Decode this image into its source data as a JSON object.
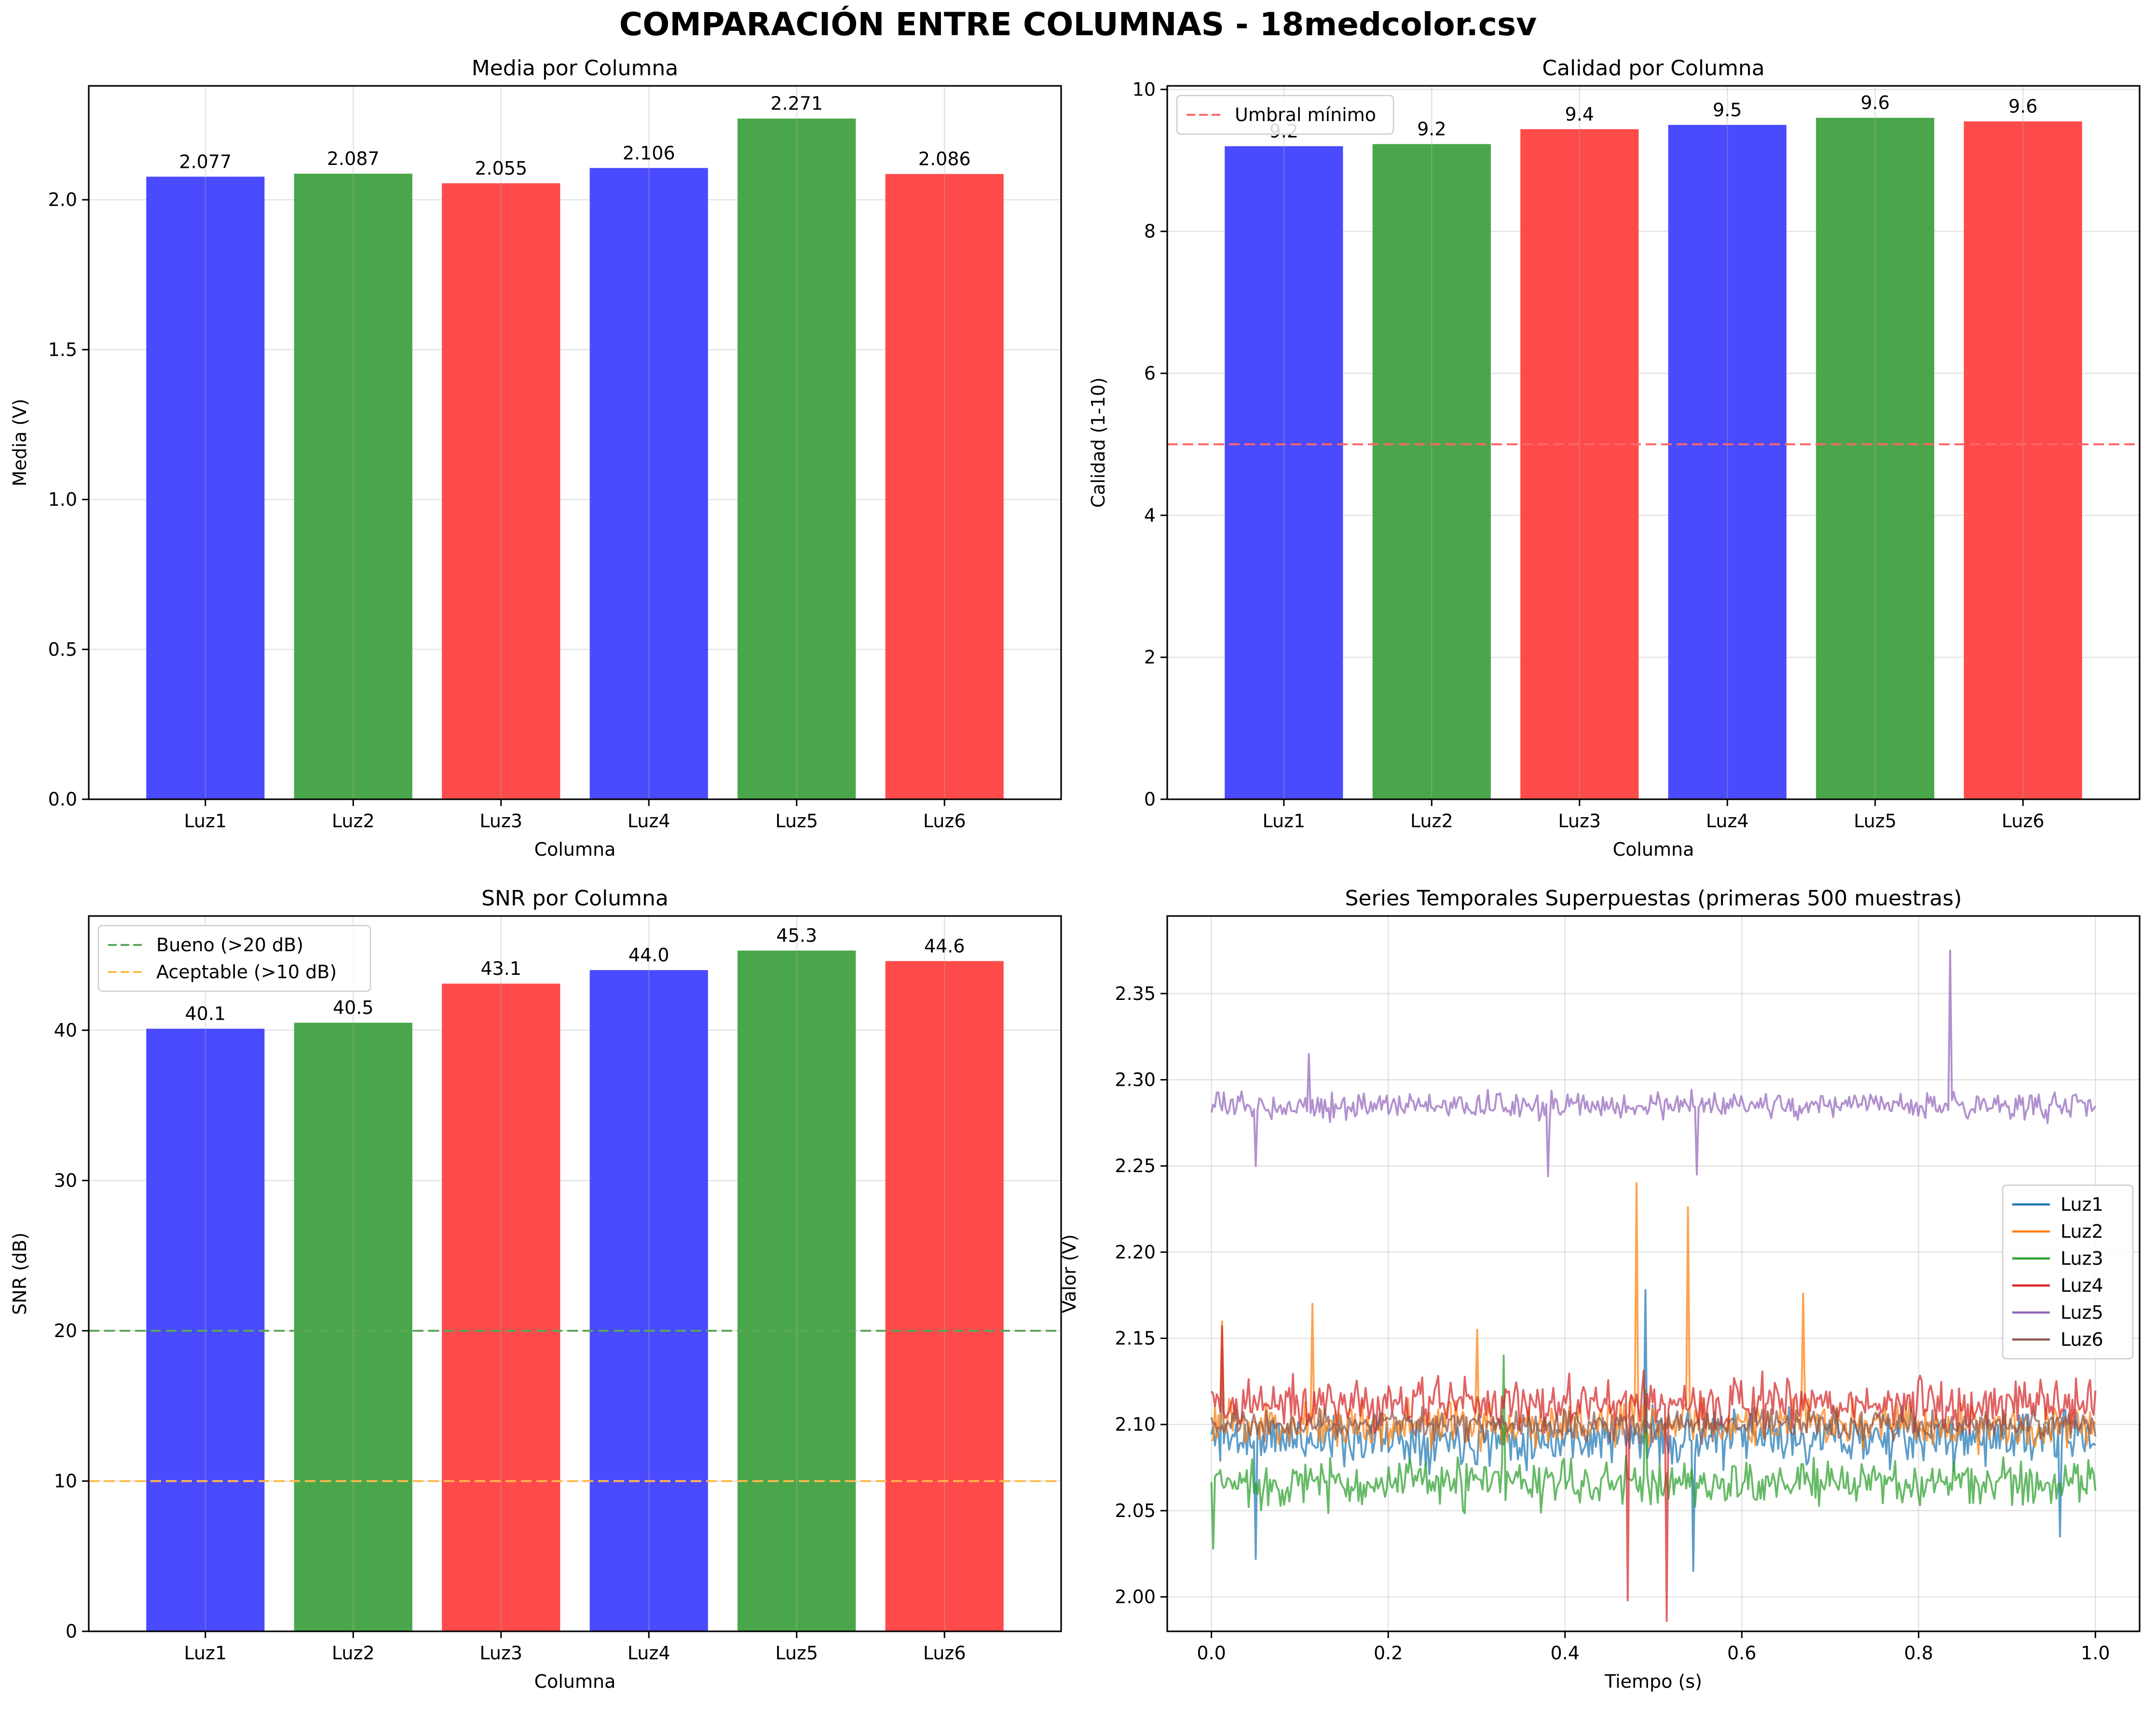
{
  "figure": {
    "title": "COMPARACIÓN ENTRE COLUMNAS - 18medcolor.csv"
  },
  "colors": {
    "blue": "#4a4aff",
    "green": "#4aa64a",
    "red": "#ff4a4a"
  },
  "chart_data": [
    {
      "type": "bar",
      "title": "Media por Columna",
      "xlabel": "Columna",
      "ylabel": "Media (V)",
      "categories": [
        "Luz1",
        "Luz2",
        "Luz3",
        "Luz4",
        "Luz5",
        "Luz6"
      ],
      "values": [
        2.077,
        2.087,
        2.055,
        2.106,
        2.271,
        2.086
      ],
      "value_labels": [
        "2.077",
        "2.087",
        "2.055",
        "2.106",
        "2.271",
        "2.086"
      ],
      "bar_colors": [
        "#4a4aff",
        "#4aa64a",
        "#ff4a4a",
        "#4a4aff",
        "#4aa64a",
        "#ff4a4a"
      ],
      "ylim": [
        0,
        2.38
      ],
      "yticks": [
        0.0,
        0.5,
        1.0,
        1.5,
        2.0
      ],
      "ytick_labels": [
        "0.0",
        "0.5",
        "1.0",
        "1.5",
        "2.0"
      ],
      "grid": true
    },
    {
      "type": "bar",
      "title": "Calidad por Columna",
      "xlabel": "Columna",
      "ylabel": "Calidad (1-10)",
      "categories": [
        "Luz1",
        "Luz2",
        "Luz3",
        "Luz4",
        "Luz5",
        "Luz6"
      ],
      "values": [
        9.2,
        9.23,
        9.44,
        9.5,
        9.6,
        9.55
      ],
      "value_labels": [
        "9.2",
        "9.2",
        "9.4",
        "9.5",
        "9.6",
        "9.6"
      ],
      "bar_colors": [
        "#4a4aff",
        "#4aa64a",
        "#ff4a4a",
        "#4a4aff",
        "#4aa64a",
        "#ff4a4a"
      ],
      "ylim": [
        0,
        10.05
      ],
      "yticks": [
        0,
        2,
        4,
        6,
        8,
        10
      ],
      "ytick_labels": [
        "0",
        "2",
        "4",
        "6",
        "8",
        "10"
      ],
      "reference_lines": [
        {
          "label": "Umbral mínimo",
          "value": 5,
          "color": "#ff6666"
        }
      ],
      "legend": "top-left",
      "grid": true
    },
    {
      "type": "bar",
      "title": "SNR por Columna",
      "xlabel": "Columna",
      "ylabel": "SNR (dB)",
      "categories": [
        "Luz1",
        "Luz2",
        "Luz3",
        "Luz4",
        "Luz5",
        "Luz6"
      ],
      "values": [
        40.1,
        40.5,
        43.1,
        44.0,
        45.3,
        44.6
      ],
      "value_labels": [
        "40.1",
        "40.5",
        "43.1",
        "44.0",
        "45.3",
        "44.6"
      ],
      "bar_colors": [
        "#4a4aff",
        "#4aa64a",
        "#ff4a4a",
        "#4a4aff",
        "#4aa64a",
        "#ff4a4a"
      ],
      "ylim": [
        0,
        47.6
      ],
      "yticks": [
        0,
        10,
        20,
        30,
        40
      ],
      "ytick_labels": [
        "0",
        "10",
        "20",
        "30",
        "40"
      ],
      "reference_lines": [
        {
          "label": "Bueno (>20 dB)",
          "value": 20,
          "color": "#5aa65a"
        },
        {
          "label": "Aceptable (>10 dB)",
          "value": 10,
          "color": "#ffb84a"
        }
      ],
      "legend": "top-left",
      "grid": true
    },
    {
      "type": "line",
      "title": "Series Temporales Superpuestas (primeras 500 muestras)",
      "xlabel": "Tiempo (s)",
      "ylabel": "Valor (V)",
      "xlim": [
        -0.05,
        1.05
      ],
      "ylim": [
        1.98,
        2.395
      ],
      "xticks": [
        0.0,
        0.2,
        0.4,
        0.6,
        0.8,
        1.0
      ],
      "xtick_labels": [
        "0.0",
        "0.2",
        "0.4",
        "0.6",
        "0.8",
        "1.0"
      ],
      "yticks": [
        2.0,
        2.05,
        2.1,
        2.15,
        2.2,
        2.25,
        2.3,
        2.35
      ],
      "ytick_labels": [
        "2.00",
        "2.05",
        "2.10",
        "2.15",
        "2.20",
        "2.25",
        "2.30",
        "2.35"
      ],
      "legend": "right",
      "grid": true,
      "series": [
        {
          "name": "Luz1",
          "color": "#1f77b4",
          "base": 2.092,
          "noise": 0.022,
          "seed": 11,
          "spikes": [
            [
              0.013,
              2.145
            ],
            [
              0.05,
              2.022
            ],
            [
              0.49,
              2.178
            ],
            [
              0.545,
              2.015
            ],
            [
              0.96,
              2.035
            ]
          ]
        },
        {
          "name": "Luz2",
          "color": "#ff7f0e",
          "base": 2.1,
          "noise": 0.02,
          "seed": 23,
          "spikes": [
            [
              0.012,
              2.16
            ],
            [
              0.115,
              2.17
            ],
            [
              0.3,
              2.155
            ],
            [
              0.48,
              2.24
            ],
            [
              0.54,
              2.226
            ],
            [
              0.67,
              2.176
            ]
          ]
        },
        {
          "name": "Luz3",
          "color": "#2ca02c",
          "base": 2.066,
          "noise": 0.02,
          "seed": 37,
          "spikes": [
            [
              0.003,
              2.028
            ],
            [
              0.33,
              2.14
            ],
            [
              0.49,
              2.12
            ]
          ]
        },
        {
          "name": "Luz4",
          "color": "#d62728",
          "base": 2.112,
          "noise": 0.022,
          "seed": 41,
          "spikes": [
            [
              0.013,
              2.157
            ],
            [
              0.47,
              1.998
            ],
            [
              0.515,
              1.986
            ]
          ]
        },
        {
          "name": "Luz5",
          "color": "#9467bd",
          "base": 2.285,
          "noise": 0.011,
          "seed": 53,
          "spikes": [
            [
              0.05,
              2.25
            ],
            [
              0.11,
              2.315
            ],
            [
              0.38,
              2.244
            ],
            [
              0.55,
              2.245
            ],
            [
              0.835,
              2.375
            ]
          ]
        },
        {
          "name": "Luz6",
          "color": "#8c564b",
          "base": 2.1,
          "noise": 0.013,
          "seed": 67,
          "spikes": []
        }
      ]
    }
  ]
}
